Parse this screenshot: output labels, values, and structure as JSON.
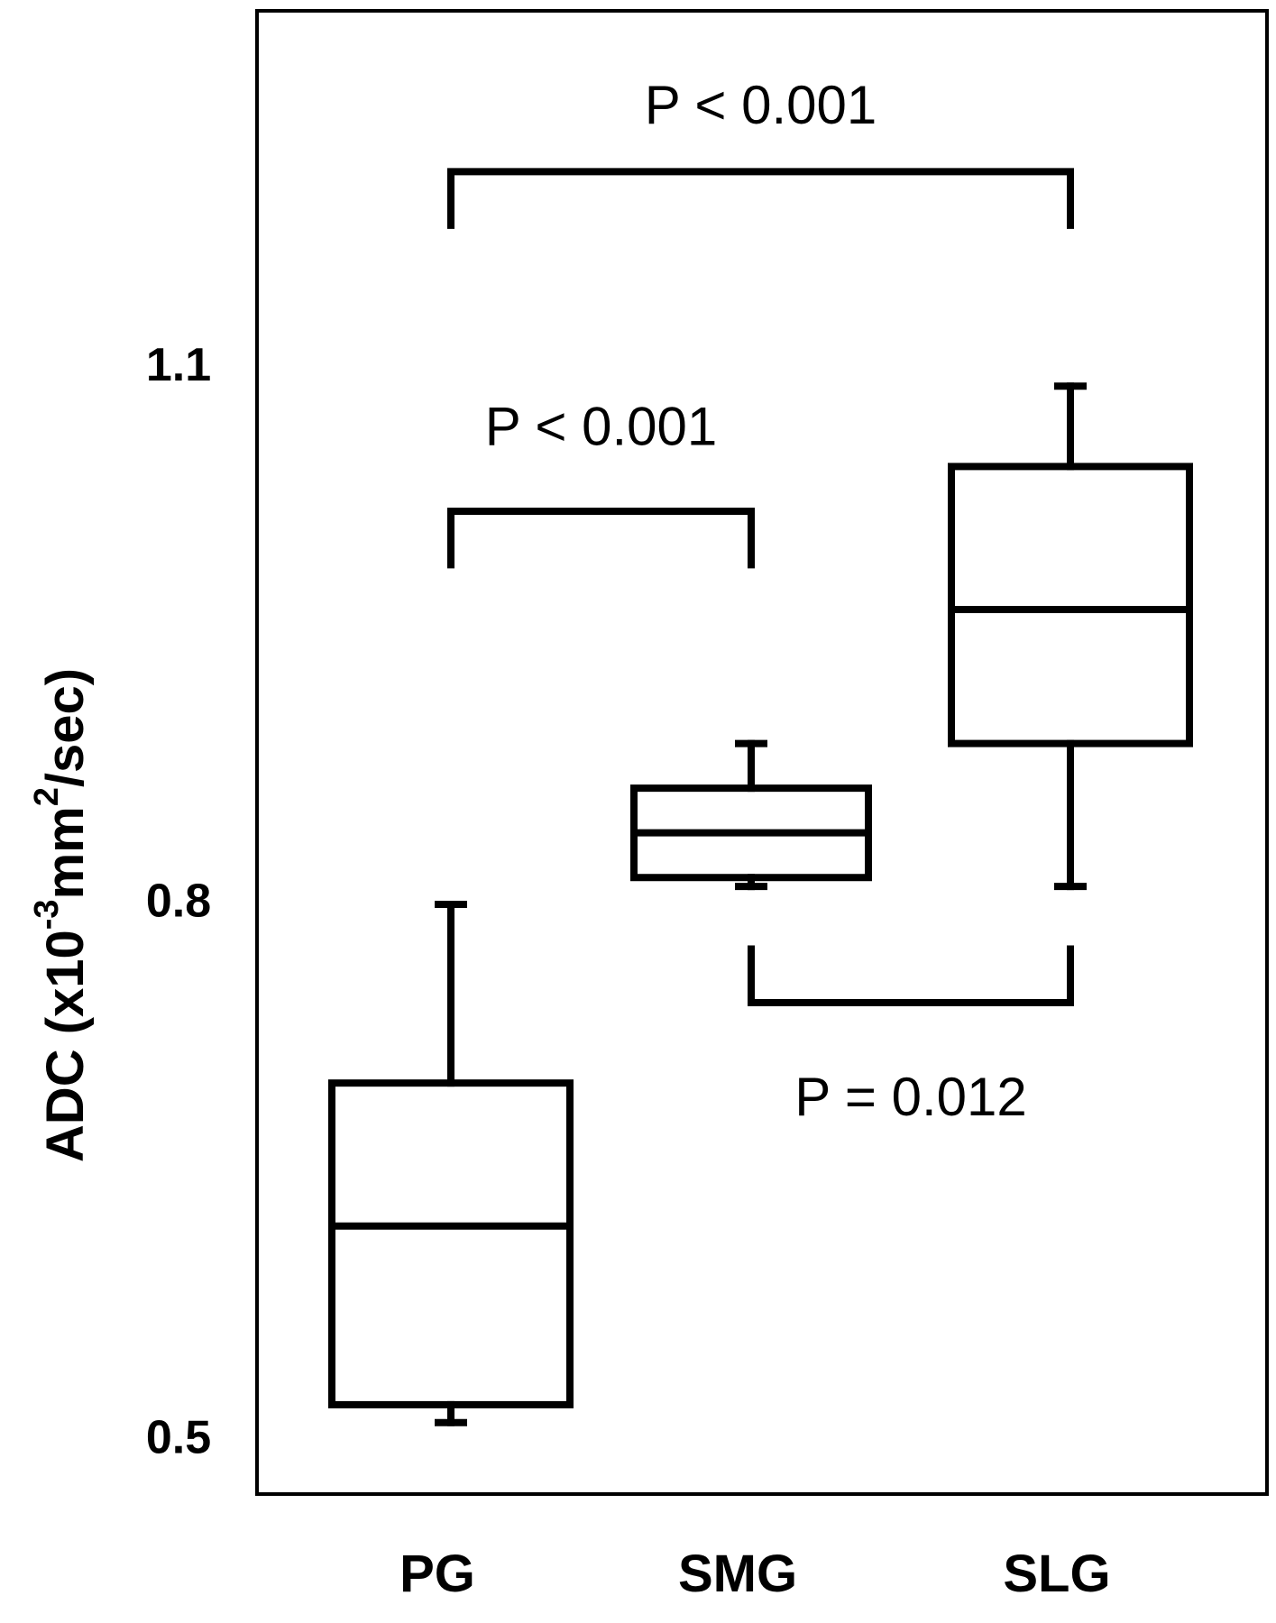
{
  "chart_data": {
    "type": "box",
    "ylabel_parts": {
      "prefix": "ADC (x10",
      "exp1": "-3",
      "middle": "mm",
      "exp2": "2",
      "suffix": "/sec)"
    },
    "ylim": [
      0.47,
      1.3
    ],
    "yticks": [
      {
        "value": 0.5,
        "label": "0.5"
      },
      {
        "value": 0.8,
        "label": "0.8"
      },
      {
        "value": 1.1,
        "label": "1.1"
      }
    ],
    "categories": [
      "PG",
      "SMG",
      "SLG"
    ],
    "boxes": [
      {
        "category": "PG",
        "min": 0.51,
        "q1": 0.52,
        "median": 0.62,
        "q3": 0.7,
        "max": 0.8
      },
      {
        "category": "SMG",
        "min": 0.81,
        "q1": 0.815,
        "median": 0.84,
        "q3": 0.865,
        "max": 0.89
      },
      {
        "category": "SLG",
        "min": 0.81,
        "q1": 0.89,
        "median": 0.965,
        "q3": 1.045,
        "max": 1.09
      }
    ],
    "annotations": [
      {
        "label": "P < 0.001",
        "from": 0,
        "to": 2,
        "y": 1.21,
        "leg": 1.18,
        "text_y": 1.245,
        "position": "above"
      },
      {
        "label": "P < 0.001",
        "from": 0,
        "to": 1,
        "y": 1.02,
        "leg": 0.99,
        "text_y": 1.065,
        "position": "above"
      },
      {
        "label": "P = 0.012",
        "from": 1,
        "to": 2,
        "y": 0.745,
        "leg": 0.775,
        "text_y": 0.69,
        "position": "below"
      }
    ]
  }
}
